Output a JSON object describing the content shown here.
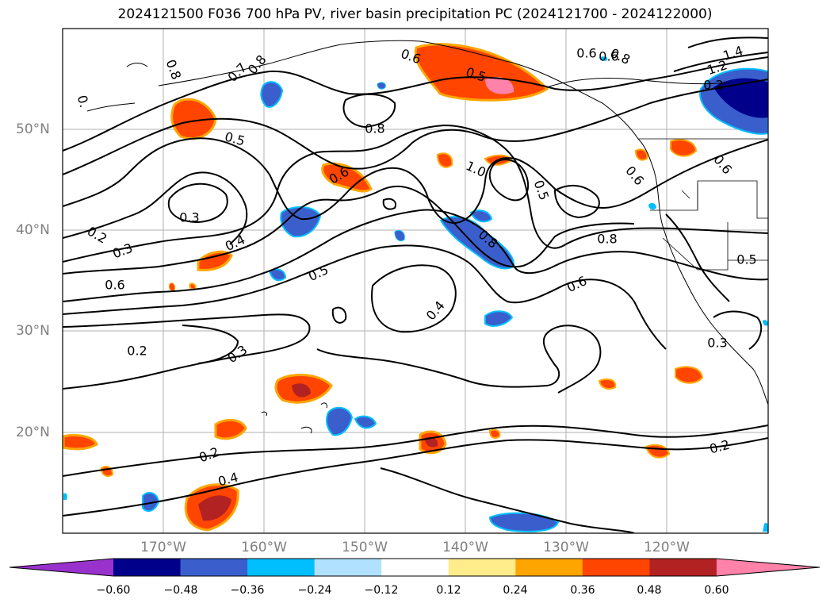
{
  "title": "2024121500 F036 700 hPa PV, river basin precipitation PC (2024121700 - 2024122000)",
  "lat_labels": [
    "50°N",
    "40°N",
    "30°N",
    "20°N"
  ],
  "lon_labels": [
    "170°W",
    "160°W",
    "150°W",
    "140°W",
    "130°W",
    "120°W"
  ],
  "colorbar": {
    "ticks": [
      "−0.60",
      "−0.48",
      "−0.36",
      "−0.24",
      "−0.12",
      "0.12",
      "0.24",
      "0.36",
      "0.48",
      "0.60"
    ],
    "colors": [
      "#9932cc",
      "#00008b",
      "#3a5fcd",
      "#00bfff",
      "#b0e2ff",
      "#ffffff",
      "#ffec8b",
      "#ffa500",
      "#ff4500",
      "#b22222",
      "#ff82ab"
    ]
  },
  "contour_labels": [
    "0.5",
    "0.6",
    "0.8",
    "0.6",
    "0.8",
    "1.4",
    "1.2",
    "0.8",
    "0.7",
    "0.8",
    "0.",
    "0.5",
    "0.6",
    "0.8",
    "1.0",
    "0.5",
    "0.6",
    "0.6",
    "0.3",
    "0.2",
    "0.3",
    "0.4",
    "0.6",
    "0.5",
    "0.8",
    "0.6",
    "0.4",
    "0.2",
    "0.3",
    "0.2",
    "0.4",
    "0.5",
    "0.3",
    "0.2",
    "0.2",
    "0.6"
  ],
  "colors": {
    "axis_text": "#808080",
    "grid": "#b0b0b0",
    "contour": "#000000"
  }
}
